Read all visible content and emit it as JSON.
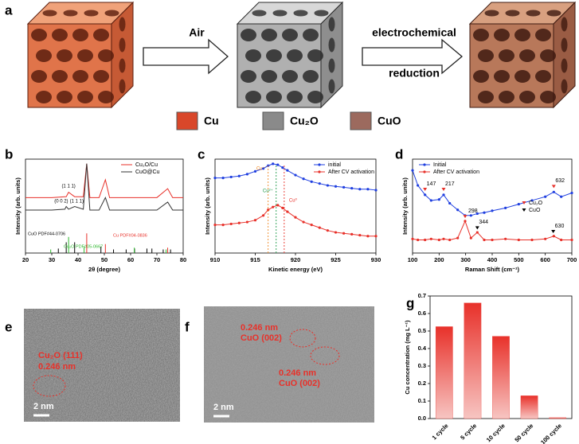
{
  "panel_a": {
    "label": "a",
    "arrow_1": "Air",
    "arrow_2_top": "electrochemical",
    "arrow_2_bottom": "reduction",
    "legend": [
      {
        "name": "Cu",
        "color": "#d9472a"
      },
      {
        "name": "Cu₂O",
        "color": "#8a8a8a"
      },
      {
        "name": "CuO",
        "color": "#9c6a5e"
      }
    ]
  },
  "panel_e": {
    "label": "e",
    "annotation_top": "Cu₂O (111)",
    "annotation_bottom": "0.246 nm",
    "scale_bar": "2 nm"
  },
  "panel_f": {
    "label": "f",
    "annotations": [
      [
        "0.246 nm",
        "CuO (002)"
      ],
      [
        "0.246 nm",
        "CuO (002)"
      ]
    ],
    "scale_bar": "2 nm"
  },
  "chart_data": [
    {
      "type": "line",
      "label": "b",
      "xlabel": "2θ (degree)",
      "ylabel": "Intensity (arb. units)",
      "x": [
        20,
        25,
        30,
        35,
        35.5,
        36.4,
        38.7,
        42,
        43.3,
        44.5,
        48,
        50.4,
        52,
        60,
        70,
        74.1,
        76,
        80
      ],
      "series": [
        {
          "name": "Cu₂O/Cu",
          "color": "#e8312a",
          "values": [
            62,
            62,
            62,
            63,
            63,
            68,
            63,
            63,
            100,
            62,
            62,
            82,
            62,
            62,
            62,
            72,
            62,
            62
          ]
        },
        {
          "name": "CuO@Cu",
          "color": "#333333",
          "values": [
            48,
            48,
            48,
            49,
            52,
            49,
            52,
            49,
            100,
            48,
            48,
            62,
            48,
            48,
            48,
            57,
            48,
            48
          ]
        }
      ],
      "references": [
        {
          "name": "CuO PDF#44-0706",
          "color": "#000000",
          "x": [
            32.5,
            35.5,
            38.7,
            48.7,
            53.5,
            58.3,
            61.5,
            66.2,
            68.1,
            72.4,
            75.2
          ],
          "values": [
            5,
            12,
            12,
            7,
            4,
            4,
            5,
            5,
            5,
            4,
            4
          ]
        },
        {
          "name": "Cu₂O PDF#05-0667",
          "color": "#2db82d",
          "x": [
            29.6,
            36.4,
            42.3,
            61.4,
            73.5
          ],
          "values": [
            4,
            18,
            7,
            6,
            4
          ]
        },
        {
          "name": "Cu PDF#04-0836",
          "color": "#e8312a",
          "x": [
            43.3,
            50.4,
            74.1
          ],
          "values": [
            22,
            10,
            6
          ]
        }
      ],
      "annotations": [
        "(1 1 1)",
        "(0 0 2)",
        "(1 1 1)"
      ],
      "xlim": [
        20,
        80
      ],
      "xticks": [
        20,
        30,
        40,
        50,
        60,
        70,
        80
      ],
      "ylim": [
        0,
        105
      ],
      "legend": "upper right",
      "markers": false
    },
    {
      "type": "line",
      "label": "c",
      "xlabel": "Kinetic energy (eV)",
      "ylabel": "Intensity (arb. units)",
      "x": [
        910,
        911,
        912,
        913,
        914,
        915,
        916,
        916.6,
        917.2,
        917.8,
        918.4,
        919,
        920,
        921,
        922,
        923,
        924,
        925,
        926,
        927,
        928,
        929,
        930
      ],
      "series": [
        {
          "name": "initial",
          "color": "#1f3fe0",
          "values": [
            80,
            80,
            81,
            82,
            84,
            87,
            90,
            93,
            95,
            94,
            91,
            88,
            83,
            79,
            76,
            74,
            72,
            71,
            70,
            69,
            68,
            68,
            67
          ]
        },
        {
          "name": "After CV activation",
          "color": "#e8312a",
          "values": [
            30,
            30,
            31,
            32,
            33,
            35,
            40,
            46,
            49,
            51,
            48,
            44,
            38,
            33,
            30,
            27,
            24,
            22,
            21,
            20,
            19,
            18,
            18
          ]
        }
      ],
      "vlines": [
        {
          "label": "Cu⁺",
          "x": 916.6,
          "color": "#f08a24"
        },
        {
          "label": "Cu²⁺",
          "x": 917.6,
          "color": "#1f9a4a"
        },
        {
          "label": "Cu⁰",
          "x": 918.6,
          "color": "#e8312a"
        }
      ],
      "xlim": [
        910,
        930
      ],
      "xticks": [
        910,
        915,
        920,
        925,
        930
      ],
      "ylim": [
        0,
        100
      ],
      "legend": "upper right",
      "markers": true
    },
    {
      "type": "line",
      "label": "d",
      "xlabel": "Raman Shift (cm⁻¹)",
      "ylabel": "Intensity (arb. units)",
      "x": [
        100,
        120,
        147,
        170,
        200,
        217,
        240,
        270,
        298,
        320,
        344,
        370,
        400,
        450,
        500,
        550,
        600,
        632,
        660,
        700
      ],
      "series": [
        {
          "name": "Initial",
          "color": "#1f3fe0",
          "values": [
            88,
            72,
            62,
            56,
            57,
            62,
            53,
            46,
            40,
            40,
            42,
            43,
            45,
            48,
            52,
            56,
            60,
            65,
            60,
            64
          ]
        },
        {
          "name": "After CV activation",
          "color": "#e8312a",
          "values": [
            15,
            14,
            14,
            15,
            14,
            15,
            14,
            16,
            34,
            16,
            22,
            14,
            14,
            15,
            14,
            14,
            15,
            18,
            14,
            14
          ]
        }
      ],
      "phases": [
        {
          "name": "Cu₂O",
          "color": "#e8312a"
        },
        {
          "name": "CuO",
          "color": "#000000"
        }
      ],
      "peaks": [
        {
          "x": 147,
          "value": 67,
          "phase": 0
        },
        {
          "x": 217,
          "value": 67,
          "phase": 0
        },
        {
          "x": 632,
          "value": 70,
          "phase": 0
        },
        {
          "x": 298,
          "value": 38,
          "phase": 0
        },
        {
          "x": 344,
          "value": 26,
          "phase": 1
        },
        {
          "x": 630,
          "value": 22,
          "phase": 1
        }
      ],
      "xlim": [
        100,
        700
      ],
      "xticks": [
        100,
        200,
        300,
        400,
        500,
        600,
        700
      ],
      "ylim": [
        0,
        100
      ],
      "legend": "upper left",
      "markers": true
    },
    {
      "type": "bar",
      "label": "g",
      "ylabel": "Cu concentration (mg L⁻¹)",
      "categories": [
        "1 cycle",
        "5 cycle",
        "10 cycle",
        "50 cycle",
        "100 cycle"
      ],
      "values": [
        0.525,
        0.66,
        0.47,
        0.13,
        0.005
      ],
      "color": "#e8312a",
      "ylim": [
        0,
        0.7
      ],
      "yticks": [
        {
          "value": 0,
          "label": "0.0"
        },
        0.1,
        0.2,
        0.3,
        0.4,
        0.5,
        0.6,
        0.7
      ]
    }
  ]
}
